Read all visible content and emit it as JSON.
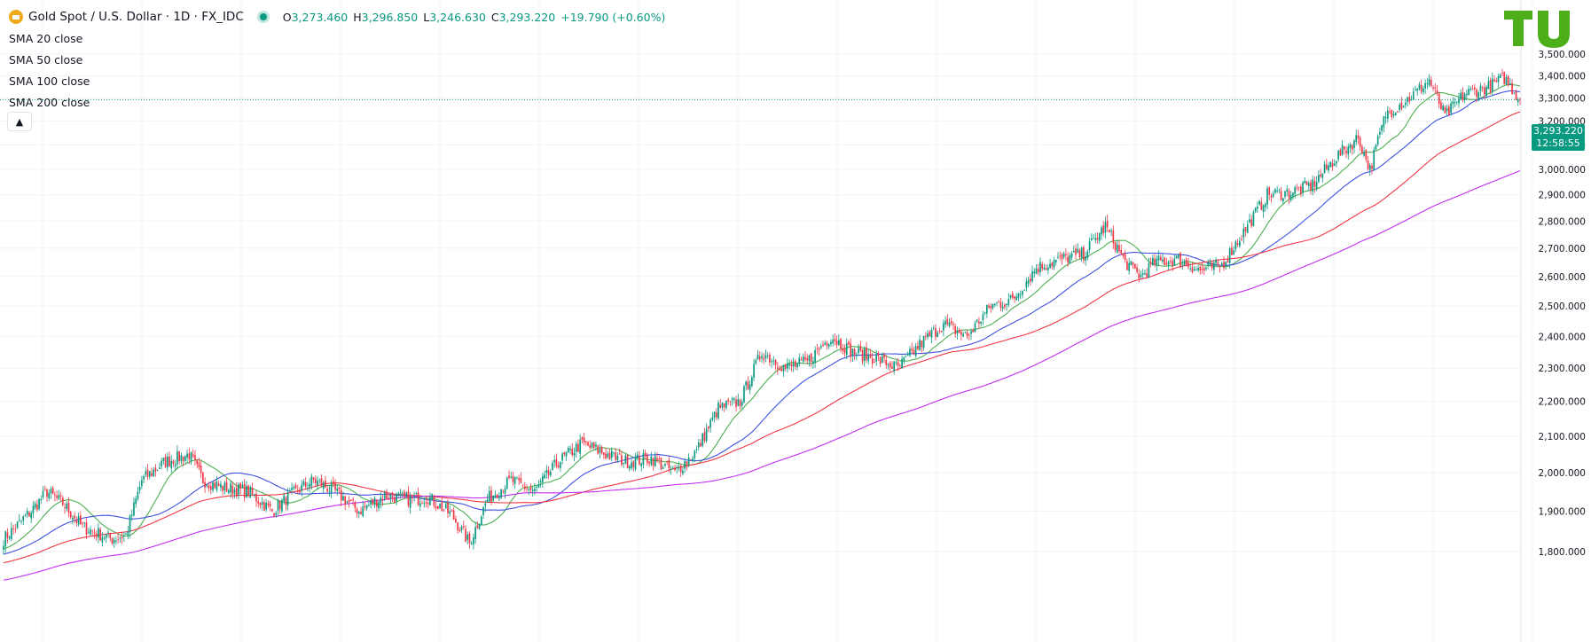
{
  "header": {
    "title": "Gold Spot / U.S. Dollar · 1D · FX_IDC",
    "ohlc": [
      {
        "key": "O",
        "value": "3,273.460"
      },
      {
        "key": "H",
        "value": "3,296.850"
      },
      {
        "key": "L",
        "value": "3,246.630"
      },
      {
        "key": "C",
        "value": "3,293.220"
      },
      {
        "key": "",
        "value": "+19.790 (+0.60%)"
      }
    ]
  },
  "indicators": [
    {
      "label": "SMA 20 close",
      "color": "#4caf50"
    },
    {
      "label": "SMA 50 close",
      "color": "#3f51e0"
    },
    {
      "label": "SMA 100 close",
      "color": "#f23645"
    },
    {
      "label": "SMA 200 close",
      "color": "#c32ef2"
    }
  ],
  "last_price": {
    "value": "3,293.220",
    "countdown": "12:58:55"
  },
  "colors": {
    "up": "#089981",
    "down": "#f23645",
    "accent": "#089981",
    "logo": "#4caf1a"
  },
  "chart_data": {
    "type": "candlestick",
    "title": "Gold Spot / U.S. Dollar · 1D · FX_IDC",
    "ylim": [
      1780,
      3600
    ],
    "y_scale": "log",
    "yticks": [
      "1,800.000",
      "1,900.000",
      "2,000.000",
      "2,100.000",
      "2,200.000",
      "2,300.000",
      "2,400.000",
      "2,500.000",
      "2,600.000",
      "2,700.000",
      "2,800.000",
      "2,900.000",
      "3,000.000",
      "3,100.000",
      "3,200.000",
      "3,300.000",
      "3,400.000",
      "3,500.000"
    ],
    "ytick_values": [
      1800,
      1900,
      2000,
      2100,
      2200,
      2300,
      2400,
      2500,
      2600,
      2700,
      2800,
      2900,
      3000,
      3100,
      3200,
      3300,
      3400,
      3500
    ],
    "close_anchors": [
      [
        0,
        1830
      ],
      [
        14,
        1900
      ],
      [
        22,
        1950
      ],
      [
        30,
        1920
      ],
      [
        40,
        1860
      ],
      [
        55,
        1830
      ],
      [
        62,
        1840
      ],
      [
        70,
        1980
      ],
      [
        82,
        2030
      ],
      [
        94,
        2050
      ],
      [
        101,
        1980
      ],
      [
        112,
        1960
      ],
      [
        124,
        1950
      ],
      [
        136,
        1900
      ],
      [
        145,
        1940
      ],
      [
        157,
        1980
      ],
      [
        168,
        1950
      ],
      [
        180,
        1900
      ],
      [
        193,
        1940
      ],
      [
        205,
        1930
      ],
      [
        215,
        1935
      ],
      [
        227,
        1890
      ],
      [
        236,
        1820
      ],
      [
        245,
        1930
      ],
      [
        257,
        1980
      ],
      [
        269,
        1950
      ],
      [
        281,
        2030
      ],
      [
        293,
        2080
      ],
      [
        305,
        2050
      ],
      [
        316,
        2030
      ],
      [
        328,
        2040
      ],
      [
        340,
        2000
      ],
      [
        351,
        2060
      ],
      [
        362,
        2180
      ],
      [
        373,
        2200
      ],
      [
        384,
        2350
      ],
      [
        396,
        2300
      ],
      [
        407,
        2320
      ],
      [
        419,
        2400
      ],
      [
        430,
        2350
      ],
      [
        442,
        2330
      ],
      [
        453,
        2300
      ],
      [
        465,
        2380
      ],
      [
        476,
        2440
      ],
      [
        488,
        2400
      ],
      [
        500,
        2500
      ],
      [
        511,
        2520
      ],
      [
        523,
        2630
      ],
      [
        535,
        2660
      ],
      [
        547,
        2680
      ],
      [
        558,
        2780
      ],
      [
        568,
        2650
      ],
      [
        576,
        2600
      ],
      [
        583,
        2650
      ],
      [
        595,
        2660
      ],
      [
        606,
        2620
      ],
      [
        617,
        2640
      ],
      [
        629,
        2770
      ],
      [
        640,
        2900
      ],
      [
        652,
        2910
      ],
      [
        663,
        2940
      ],
      [
        675,
        3050
      ],
      [
        686,
        3130
      ],
      [
        692,
        3000
      ],
      [
        700,
        3230
      ],
      [
        712,
        3300
      ],
      [
        722,
        3380
      ],
      [
        730,
        3220
      ],
      [
        740,
        3320
      ],
      [
        752,
        3350
      ],
      [
        760,
        3390
      ],
      [
        768,
        3293
      ]
    ],
    "bars": 769,
    "last_close": 3293.22,
    "series": [
      {
        "name": "SMA 20 close",
        "period": 20,
        "color": "#4caf50"
      },
      {
        "name": "SMA 50 close",
        "period": 50,
        "color": "#3f51e0"
      },
      {
        "name": "SMA 100 close",
        "period": 100,
        "color": "#f23645"
      },
      {
        "name": "SMA 200 close",
        "period": 200,
        "color": "#c32ef2"
      }
    ]
  }
}
